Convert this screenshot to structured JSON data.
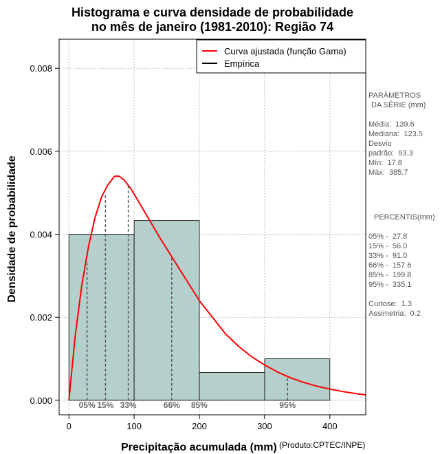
{
  "title": {
    "line1": "Histograma e curva densidade de probabilidade",
    "line2": "no mês de janeiro (1981-2010): Região 74"
  },
  "credit": "(Produto:CPTEC/INPE)",
  "side_panel": {
    "params_title": [
      "PARÂMETROS",
      "DA SÉRIE (mm)"
    ],
    "params": [
      "Média:  139.6",
      "Mediana:  123.5",
      "Desvio",
      "padrão:  93.3",
      "Mín:  17.8",
      "Máx:  385.7"
    ],
    "percentis_title": "PERCENTIS(mm)",
    "percentis": [
      "05% -  27.8",
      "15% -  56.0",
      "33% -  91.0",
      "66% -  157.6",
      "85% -  199.8",
      "95% -  335.1"
    ],
    "stats": [
      "Curtose:  1.3",
      "Assimetria:  0.2"
    ]
  },
  "colors": {
    "bar_fill": "#b5cfcd",
    "curve": "#ff0000",
    "grid": "#bbbbbb",
    "percentile_line": "#555555",
    "percentile_label": "#666666"
  },
  "chart_data": {
    "type": "bar",
    "title": "Histograma e curva densidade de probabilidade no mês de janeiro (1981-2010): Região 74",
    "xlabel": "Precipitação acumulada (mm)",
    "ylabel": "Densidade de probabilidade",
    "xlim": [
      -15,
      455
    ],
    "ylim": [
      -0.00035,
      0.0087
    ],
    "xticks": [
      0,
      100,
      200,
      300,
      400
    ],
    "yticks": [
      0.0,
      0.002,
      0.004,
      0.006,
      0.008
    ],
    "ytick_labels": [
      "0.000",
      "0.002",
      "0.004",
      "0.006",
      "0.008"
    ],
    "grid": true,
    "legend": {
      "position": "top-right",
      "entries": [
        {
          "label": "Curva ajustada (função Gama)",
          "color": "#ff0000"
        },
        {
          "label": "Empírica",
          "color": "#000000"
        }
      ]
    },
    "histogram": {
      "bins": [
        {
          "from": 0,
          "to": 100,
          "density": 0.004
        },
        {
          "from": 100,
          "to": 200,
          "density": 0.00433
        },
        {
          "from": 200,
          "to": 300,
          "density": 0.00067
        },
        {
          "from": 300,
          "to": 400,
          "density": 0.001
        }
      ]
    },
    "gamma_fit": {
      "mode": 77,
      "peak_density": 0.0054,
      "x": [
        0,
        10,
        20,
        30,
        40,
        50,
        60,
        70,
        77,
        85,
        95,
        110,
        125,
        140,
        160,
        180,
        200,
        220,
        240,
        260,
        280,
        300,
        320,
        340,
        360,
        380,
        400,
        420,
        440,
        455
      ],
      "y": [
        0.0,
        0.0016,
        0.0028,
        0.0037,
        0.0044,
        0.0049,
        0.0052,
        0.0054,
        0.0054,
        0.0053,
        0.0051,
        0.0047,
        0.0043,
        0.0039,
        0.0034,
        0.0029,
        0.0024,
        0.002,
        0.0016,
        0.0013,
        0.00105,
        0.00085,
        0.00068,
        0.00054,
        0.00043,
        0.00034,
        0.00027,
        0.00021,
        0.00016,
        0.00013
      ]
    },
    "percentiles": [
      {
        "label": "05%",
        "value": 27.8,
        "density": 0.0033
      },
      {
        "label": "15%",
        "value": 56.0,
        "density": 0.00497
      },
      {
        "label": "33%",
        "value": 91.0,
        "density": 0.0052
      },
      {
        "label": "66%",
        "value": 157.6,
        "density": 0.00345
      },
      {
        "label": "85%",
        "value": 199.8,
        "density": 0.00245
      },
      {
        "label": "95%",
        "value": 335.1,
        "density": 0.00057
      }
    ]
  }
}
